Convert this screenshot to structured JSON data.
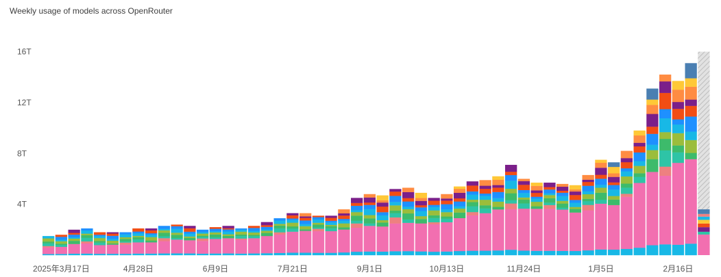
{
  "title": "Weekly usage of models across OpenRouter",
  "chart_data": {
    "type": "bar",
    "stacked": true,
    "unit": "T",
    "ylim": [
      0,
      16.3
    ],
    "yticks": [
      {
        "value": 4,
        "label": "4T"
      },
      {
        "value": 8,
        "label": "8T"
      },
      {
        "value": 12,
        "label": "12T"
      },
      {
        "value": 16,
        "label": "16T"
      }
    ],
    "xticks": [
      {
        "index": 1,
        "label": "2025年3月17日"
      },
      {
        "index": 7,
        "label": "4月28日"
      },
      {
        "index": 13,
        "label": "6月9日"
      },
      {
        "index": 19,
        "label": "7月21日"
      },
      {
        "index": 25,
        "label": "9月1日"
      },
      {
        "index": 31,
        "label": "10月13日"
      },
      {
        "index": 37,
        "label": "11月24日"
      },
      {
        "index": 43,
        "label": "1月5日"
      },
      {
        "index": 49,
        "label": "2月16日"
      }
    ],
    "grid": false,
    "legend": "none",
    "partial_last_week": true,
    "totals": [
      1.5,
      1.6,
      2.0,
      2.1,
      1.8,
      1.8,
      1.8,
      2.1,
      2.1,
      2.3,
      2.4,
      2.3,
      2.0,
      2.2,
      2.3,
      2.1,
      2.3,
      2.6,
      2.9,
      3.3,
      3.3,
      3.1,
      3.1,
      3.6,
      4.5,
      4.8,
      4.7,
      5.2,
      5.3,
      4.9,
      4.5,
      4.8,
      5.4,
      5.8,
      5.9,
      6.2,
      7.1,
      6.0,
      5.7,
      5.7,
      5.6,
      5.5,
      6.3,
      7.5,
      7.3,
      8.2,
      9.8,
      13.1,
      14.2,
      13.7,
      15.1,
      16.0
    ],
    "pink_share": [
      0.35,
      0.35,
      0.38,
      0.38,
      0.38,
      0.4,
      0.4,
      0.42,
      0.42,
      0.42,
      0.45,
      0.45,
      0.5,
      0.52,
      0.52,
      0.52,
      0.52,
      0.52,
      0.5,
      0.5,
      0.52,
      0.55,
      0.55,
      0.5,
      0.42,
      0.42,
      0.42,
      0.42,
      0.42,
      0.45,
      0.48,
      0.48,
      0.48,
      0.48,
      0.5,
      0.52,
      0.45,
      0.55,
      0.58,
      0.58,
      0.58,
      0.55,
      0.5,
      0.48,
      0.48,
      0.5,
      0.52,
      0.44,
      0.38,
      0.47,
      0.44,
      0.0
    ],
    "segments_per_bar": [
      5,
      6,
      6,
      6,
      6,
      6,
      6,
      6,
      6,
      6,
      6,
      6,
      6,
      6,
      6,
      6,
      6,
      6,
      6,
      7,
      7,
      7,
      7,
      7,
      8,
      8,
      8,
      8,
      8,
      8,
      8,
      8,
      8,
      8,
      8,
      8,
      8,
      8,
      8,
      8,
      8,
      8,
      9,
      9,
      9,
      9,
      9,
      9,
      9,
      9,
      9,
      9
    ],
    "last_week_total": 3.6,
    "colors": {
      "pink": "#f26fb0",
      "salmon": "#ee8080",
      "teal": "#2ec4a6",
      "cyan": "#18b8e6",
      "blue": "#1e90ff",
      "green": "#3dbb6b",
      "olive": "#9bbd3b",
      "purple": "#7b1f8a",
      "red": "#f24d14",
      "orange": "#ff8c42",
      "yellow": "#ffc837",
      "steel": "#4a7fb2",
      "lavender": "#8f6ee8",
      "tan": "#c9a97a",
      "hatch": "#cfcfcf"
    }
  }
}
